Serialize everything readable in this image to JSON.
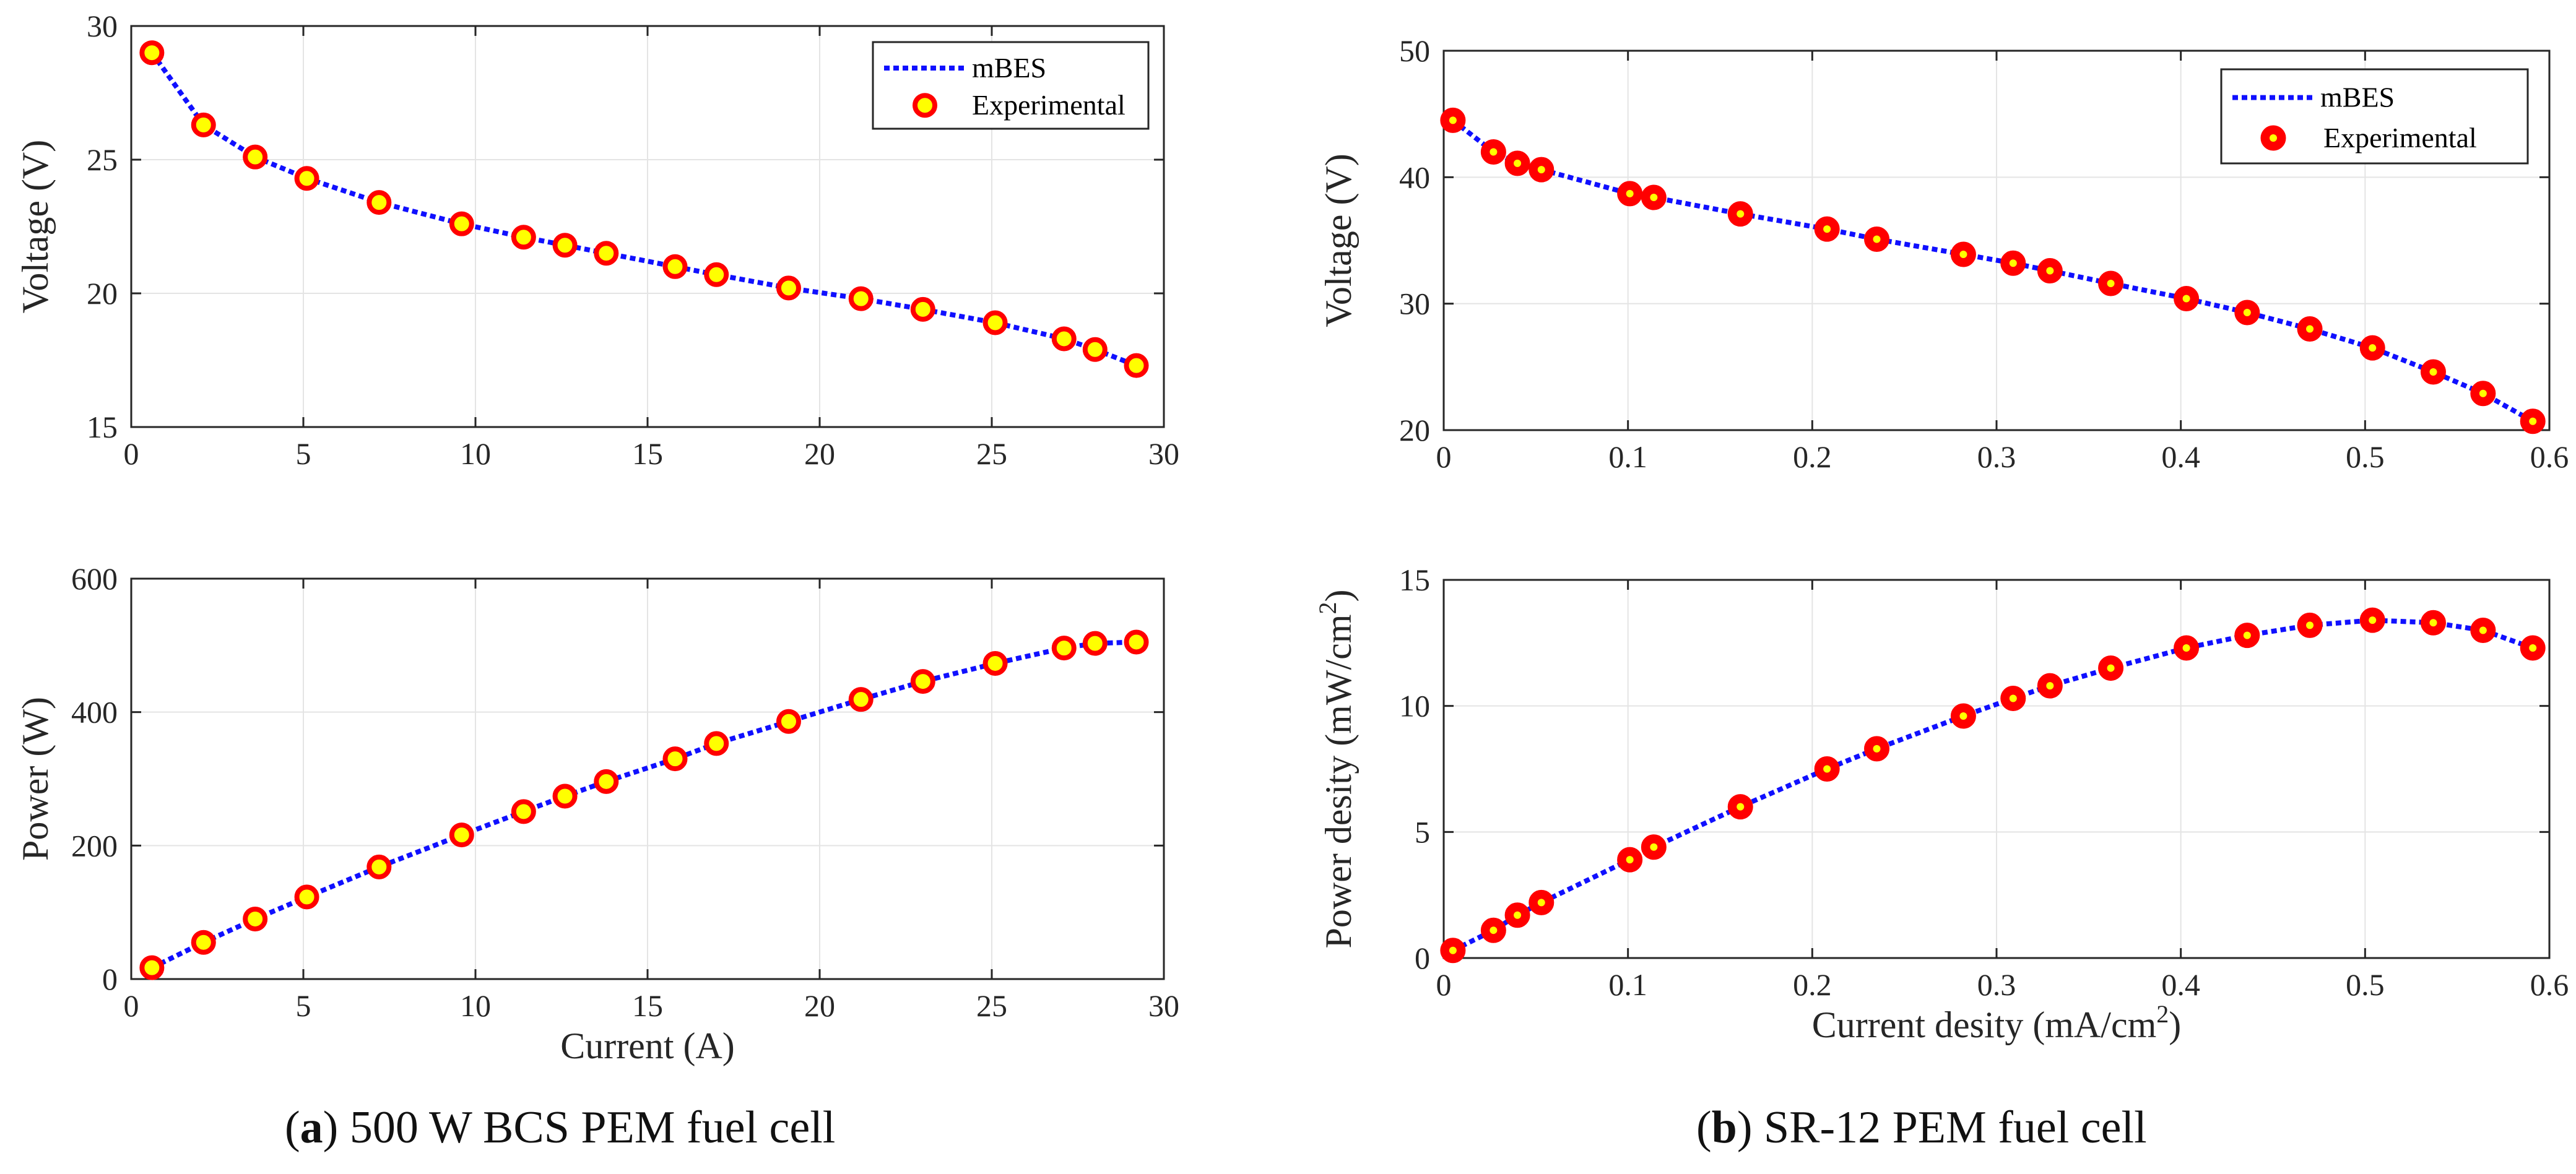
{
  "colors": {
    "line": "#1010ff",
    "marker_fill": "#ffff00",
    "marker_edge": "#ff0000",
    "grid": "#e4e4e4",
    "axis": "#262626"
  },
  "captions": {
    "a": {
      "letter": "a",
      "text": "500 W BCS PEM fuel cell"
    },
    "b": {
      "letter": "b",
      "text": "SR-12 PEM fuel cell"
    }
  },
  "chart_data": [
    {
      "id": "a-voltage",
      "type": "line",
      "title": "",
      "xlabel": "",
      "ylabel": "Voltage (V)",
      "xlim": [
        0,
        30
      ],
      "ylim": [
        15,
        30
      ],
      "xticks": [
        "0",
        "5",
        "10",
        "15",
        "20",
        "25",
        "30"
      ],
      "xtick_values": [
        0,
        5,
        10,
        15,
        20,
        25,
        30
      ],
      "yticks": [
        "15",
        "20",
        "25",
        "30"
      ],
      "ytick_values": [
        15,
        20,
        25,
        30
      ],
      "grid": true,
      "legend": {
        "position": "top-right",
        "items": [
          "mBES",
          "Experimental"
        ]
      },
      "series": [
        {
          "name": "mBES",
          "style": "dotted-line",
          "x": [
            0.6,
            2.1,
            3.6,
            5.1,
            7.2,
            9.6,
            11.4,
            12.6,
            13.8,
            15.8,
            17.0,
            19.1,
            21.2,
            23.0,
            25.1,
            27.1,
            28.0,
            29.2
          ],
          "y": [
            29.0,
            26.3,
            25.1,
            24.3,
            23.4,
            22.6,
            22.1,
            21.8,
            21.5,
            21.0,
            20.7,
            20.2,
            19.8,
            19.4,
            18.9,
            18.3,
            17.9,
            17.3
          ]
        },
        {
          "name": "Experimental",
          "style": "markers",
          "x": [
            0.6,
            2.1,
            3.6,
            5.1,
            7.2,
            9.6,
            11.4,
            12.6,
            13.8,
            15.8,
            17.0,
            19.1,
            21.2,
            23.0,
            25.1,
            27.1,
            28.0,
            29.2
          ],
          "y": [
            29.0,
            26.3,
            25.1,
            24.3,
            23.4,
            22.6,
            22.1,
            21.8,
            21.5,
            21.0,
            20.7,
            20.2,
            19.8,
            19.4,
            18.9,
            18.3,
            17.9,
            17.3
          ]
        }
      ]
    },
    {
      "id": "a-power",
      "type": "line",
      "title": "",
      "xlabel": "Current (A)",
      "ylabel": "Power (W)",
      "xlim": [
        0,
        30
      ],
      "ylim": [
        0,
        600
      ],
      "xticks": [
        "0",
        "5",
        "10",
        "15",
        "20",
        "25",
        "30"
      ],
      "xtick_values": [
        0,
        5,
        10,
        15,
        20,
        25,
        30
      ],
      "yticks": [
        "0",
        "200",
        "400",
        "600"
      ],
      "ytick_values": [
        0,
        200,
        400,
        600
      ],
      "grid": true,
      "legend": null,
      "series": [
        {
          "name": "mBES",
          "style": "dotted-line",
          "x": [
            0.6,
            2.1,
            3.6,
            5.1,
            7.2,
            9.6,
            11.4,
            12.6,
            13.8,
            15.8,
            17.0,
            19.1,
            21.2,
            23.0,
            25.1,
            27.1,
            28.0,
            29.2
          ],
          "y": [
            17,
            55,
            90,
            123,
            168,
            216,
            251,
            274,
            296,
            330,
            353,
            386,
            419,
            446,
            473,
            496,
            503,
            505
          ]
        },
        {
          "name": "Experimental",
          "style": "markers",
          "x": [
            0.6,
            2.1,
            3.6,
            5.1,
            7.2,
            9.6,
            11.4,
            12.6,
            13.8,
            15.8,
            17.0,
            19.1,
            21.2,
            23.0,
            25.1,
            27.1,
            28.0,
            29.2
          ],
          "y": [
            17,
            55,
            90,
            123,
            168,
            216,
            251,
            274,
            296,
            330,
            353,
            386,
            419,
            446,
            473,
            496,
            503,
            505
          ]
        }
      ]
    },
    {
      "id": "b-voltage",
      "type": "line",
      "title": "",
      "xlabel": "",
      "ylabel": "Voltage (V)",
      "xlim": [
        0,
        0.6
      ],
      "ylim": [
        20,
        50
      ],
      "xticks": [
        "0",
        "0.1",
        "0.2",
        "0.3",
        "0.4",
        "0.5",
        "0.6"
      ],
      "xtick_values": [
        0,
        0.1,
        0.2,
        0.3,
        0.4,
        0.5,
        0.6
      ],
      "yticks": [
        "20",
        "30",
        "40",
        "50"
      ],
      "ytick_values": [
        20,
        30,
        40,
        50
      ],
      "grid": true,
      "legend": {
        "position": "top-right",
        "items": [
          "mBES",
          "Experimental"
        ]
      },
      "series": [
        {
          "name": "mBES",
          "style": "dotted-line",
          "x": [
            0.005,
            0.027,
            0.04,
            0.053,
            0.101,
            0.114,
            0.161,
            0.208,
            0.235,
            0.282,
            0.309,
            0.329,
            0.362,
            0.403,
            0.436,
            0.47,
            0.504,
            0.537,
            0.564,
            0.591
          ],
          "y": [
            44.5,
            42.0,
            41.1,
            40.6,
            38.7,
            38.4,
            37.1,
            35.9,
            35.1,
            33.9,
            33.2,
            32.6,
            31.6,
            30.4,
            29.3,
            28.0,
            26.5,
            24.6,
            22.9,
            20.7
          ]
        },
        {
          "name": "Experimental",
          "style": "markers",
          "x": [
            0.005,
            0.027,
            0.04,
            0.053,
            0.101,
            0.114,
            0.161,
            0.208,
            0.235,
            0.282,
            0.309,
            0.329,
            0.362,
            0.403,
            0.436,
            0.47,
            0.504,
            0.537,
            0.564,
            0.591
          ],
          "y": [
            44.5,
            42.0,
            41.1,
            40.6,
            38.7,
            38.4,
            37.1,
            35.9,
            35.1,
            33.9,
            33.2,
            32.6,
            31.6,
            30.4,
            29.3,
            28.0,
            26.5,
            24.6,
            22.9,
            20.7
          ]
        }
      ]
    },
    {
      "id": "b-power",
      "type": "line",
      "title": "",
      "xlabel": "Current desity (mA/cm",
      "xlabel_sup": "2",
      "xlabel_end": ")",
      "ylabel": "Power desity (mW/cm",
      "ylabel_sup": "2",
      "ylabel_end": ")",
      "xlim": [
        0,
        0.6
      ],
      "ylim": [
        0,
        15
      ],
      "xticks": [
        "0",
        "0.1",
        "0.2",
        "0.3",
        "0.4",
        "0.5",
        "0.6"
      ],
      "xtick_values": [
        0,
        0.1,
        0.2,
        0.3,
        0.4,
        0.5,
        0.6
      ],
      "yticks": [
        "0",
        "5",
        "10",
        "15"
      ],
      "ytick_values": [
        0,
        5,
        10,
        15
      ],
      "grid": true,
      "legend": null,
      "series": [
        {
          "name": "mBES",
          "style": "dotted-line",
          "x": [
            0.005,
            0.027,
            0.04,
            0.053,
            0.101,
            0.114,
            0.161,
            0.208,
            0.235,
            0.282,
            0.309,
            0.329,
            0.362,
            0.403,
            0.436,
            0.47,
            0.504,
            0.537,
            0.564,
            0.591
          ],
          "y": [
            0.3,
            1.1,
            1.7,
            2.2,
            3.9,
            4.4,
            6.0,
            7.5,
            8.3,
            9.6,
            10.3,
            10.8,
            11.5,
            12.3,
            12.8,
            13.2,
            13.4,
            13.3,
            13.0,
            12.3
          ]
        },
        {
          "name": "Experimental",
          "style": "markers",
          "x": [
            0.005,
            0.027,
            0.04,
            0.053,
            0.101,
            0.114,
            0.161,
            0.208,
            0.235,
            0.282,
            0.309,
            0.329,
            0.362,
            0.403,
            0.436,
            0.47,
            0.504,
            0.537,
            0.564,
            0.591
          ],
          "y": [
            0.3,
            1.1,
            1.7,
            2.2,
            3.9,
            4.4,
            6.0,
            7.5,
            8.3,
            9.6,
            10.3,
            10.8,
            11.5,
            12.3,
            12.8,
            13.2,
            13.4,
            13.3,
            13.0,
            12.3
          ]
        }
      ]
    }
  ]
}
